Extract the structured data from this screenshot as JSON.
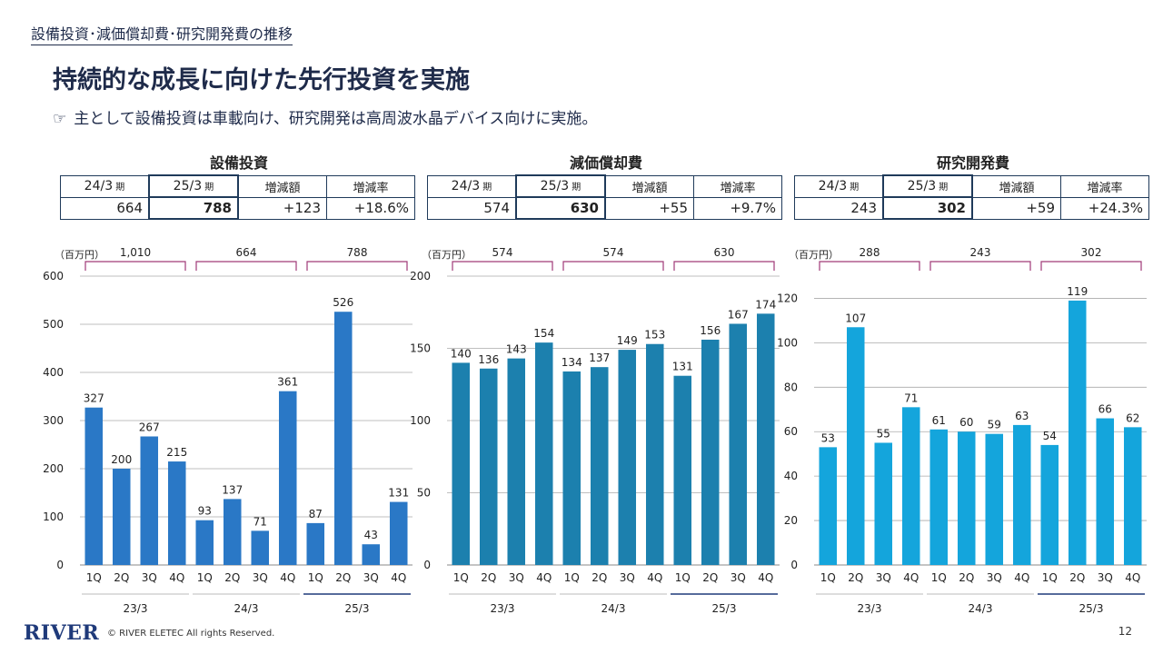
{
  "header": {
    "breadcrumb": "設備投資･減価償却費･研究開発費の推移",
    "title": "持続的な成長に向けた先行投資を実施",
    "subtitle_icon": "☞",
    "subtitle": "主として設備投資は車載向け、研究開発は高周波水晶デバイス向けに実施。"
  },
  "footer": {
    "logo": "RIVER",
    "copyright": "© RIVER ELETEC All rights Reserved.",
    "page": "12"
  },
  "unit_label": "（百万円）",
  "panels": [
    {
      "title": "設備投資",
      "summary": {
        "headers": [
          "24/3",
          "25/3",
          "増減額",
          "増減率"
        ],
        "period_suffix": "期",
        "values": [
          "664",
          "788",
          "+123",
          "+18.6%"
        ]
      },
      "annual_totals": [
        "1,010",
        "664",
        "788"
      ]
    },
    {
      "title": "減価償却費",
      "summary": {
        "headers": [
          "24/3",
          "25/3",
          "増減額",
          "増減率"
        ],
        "period_suffix": "期",
        "values": [
          "574",
          "630",
          "+55",
          "+9.7%"
        ]
      },
      "annual_totals": [
        "574",
        "574",
        "630"
      ]
    },
    {
      "title": "研究開発費",
      "summary": {
        "headers": [
          "24/3",
          "25/3",
          "増減額",
          "増減率"
        ],
        "period_suffix": "期",
        "values": [
          "243",
          "302",
          "+59",
          "+24.3%"
        ]
      },
      "annual_totals": [
        "288",
        "243",
        "302"
      ]
    }
  ],
  "chart_data": [
    {
      "type": "bar",
      "title": "設備投資",
      "ylabel": "（百万円）",
      "categories": [
        "1Q",
        "2Q",
        "3Q",
        "4Q",
        "1Q",
        "2Q",
        "3Q",
        "4Q",
        "1Q",
        "2Q",
        "3Q",
        "4Q"
      ],
      "groups": [
        "23/3",
        "24/3",
        "25/3"
      ],
      "values": [
        327,
        200,
        267,
        215,
        93,
        137,
        71,
        361,
        87,
        526,
        43,
        131
      ],
      "ylim": [
        0,
        600
      ],
      "yticks": [
        0,
        100,
        200,
        300,
        400,
        500,
        600
      ],
      "color": "#2a78c6",
      "grid": true
    },
    {
      "type": "bar",
      "title": "減価償却費",
      "ylabel": "（百万円）",
      "categories": [
        "1Q",
        "2Q",
        "3Q",
        "4Q",
        "1Q",
        "2Q",
        "3Q",
        "4Q",
        "1Q",
        "2Q",
        "3Q",
        "4Q"
      ],
      "groups": [
        "23/3",
        "24/3",
        "25/3"
      ],
      "values": [
        140,
        136,
        143,
        154,
        134,
        137,
        149,
        153,
        131,
        156,
        167,
        174
      ],
      "ylim": [
        0,
        200
      ],
      "yticks": [
        0,
        50,
        100,
        150,
        200
      ],
      "color": "#1c80ae",
      "grid": true
    },
    {
      "type": "bar",
      "title": "研究開発費",
      "ylabel": "（百万円）",
      "categories": [
        "1Q",
        "2Q",
        "3Q",
        "4Q",
        "1Q",
        "2Q",
        "3Q",
        "4Q",
        "1Q",
        "2Q",
        "3Q",
        "4Q"
      ],
      "groups": [
        "23/3",
        "24/3",
        "25/3"
      ],
      "values": [
        53,
        107,
        55,
        71,
        61,
        60,
        59,
        63,
        54,
        119,
        66,
        62
      ],
      "ylim": [
        0,
        130
      ],
      "yticks": [
        0,
        20,
        40,
        60,
        80,
        100,
        120
      ],
      "color": "#14a5dc",
      "grid": true
    }
  ],
  "colors": {
    "bracket": "#a03a78",
    "title_navy": "#1f2b4a",
    "gridline": "#aaaaaa",
    "highlight_group_line": "#1f3a7a"
  }
}
